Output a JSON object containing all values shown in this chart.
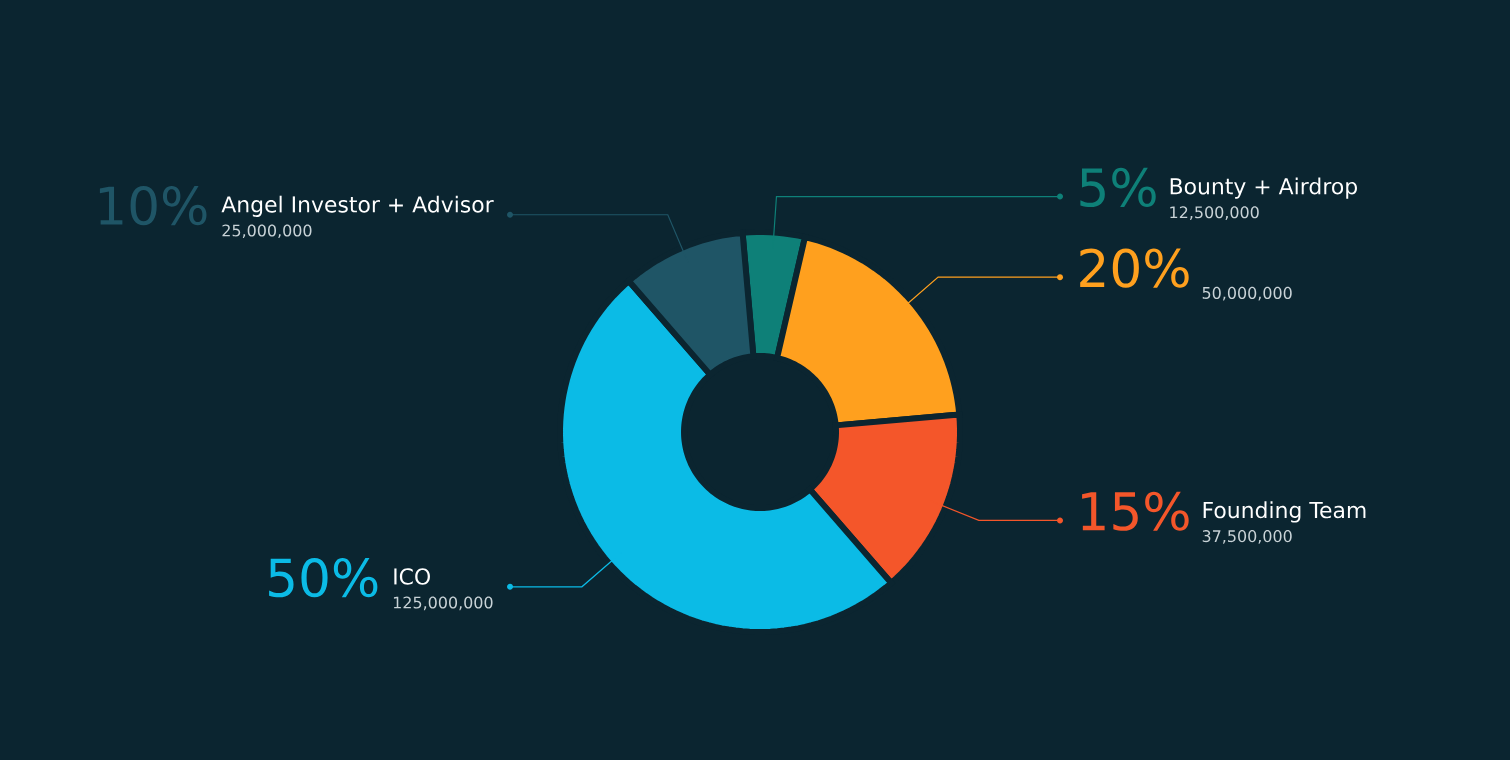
{
  "chart_data": {
    "type": "donut",
    "categories": [
      "Bounty + Airdrop",
      null,
      "Founding Team",
      "ICO",
      "Angel Investor + Advisor"
    ],
    "values": [
      5,
      20,
      15,
      50,
      10
    ],
    "colors": [
      "#0e8078",
      "#ffa01e",
      "#f4562a",
      "#0bbbe6",
      "#1f5566"
    ],
    "value_labels": [
      "5%",
      "20%",
      "15%",
      "50%",
      "10%"
    ],
    "annotations": [
      "12,500,000",
      "50,000,000",
      "37,500,000",
      "125,000,000",
      "25,000,000"
    ]
  }
}
